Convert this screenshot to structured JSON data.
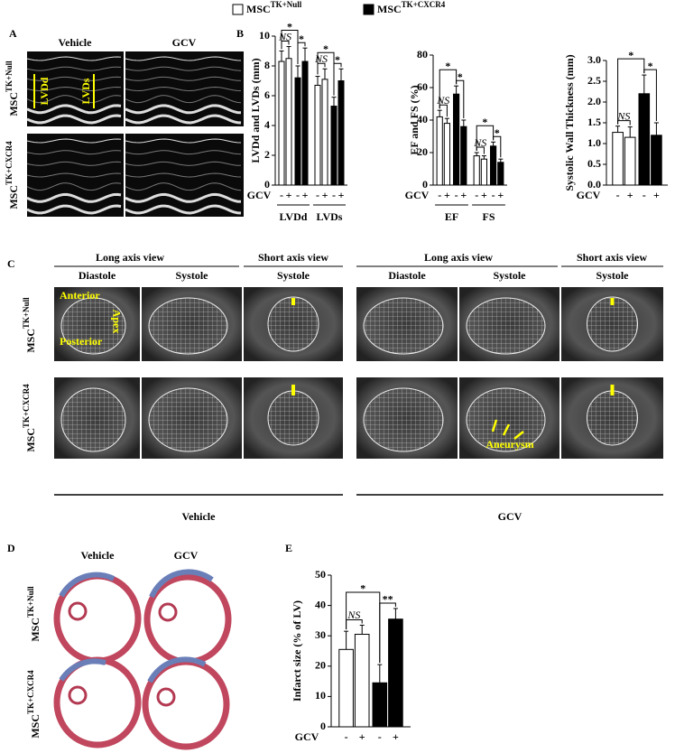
{
  "legend": [
    {
      "main": "MSC",
      "sup": "TK+Null",
      "color": "#ffffff"
    },
    {
      "main": "MSC",
      "sup": "TK+CXCR4",
      "color": "#000000"
    }
  ],
  "panel_labels": [
    "A",
    "B",
    "C",
    "D",
    "E"
  ],
  "panel_a": {
    "columns": [
      "Vehicle",
      "GCV"
    ],
    "rows": [
      {
        "main": "MSC",
        "sup": "TK+Null"
      },
      {
        "main": "MSC",
        "sup": "TK+CXCR4"
      }
    ],
    "markers": [
      "LVDd",
      "LVDs"
    ]
  },
  "panel_c": {
    "view_headers": [
      "Long axis view",
      "Short axis view",
      "Long axis view",
      "Short axis  view"
    ],
    "phases": [
      "Diastole",
      "Systole",
      "Systole",
      "Diastole",
      "Systole",
      "Systole"
    ],
    "rows": [
      {
        "main": "MSC",
        "sup": "TK+Null"
      },
      {
        "main": "MSC",
        "sup": "TK+CXCR4"
      }
    ],
    "annotations": [
      "Anterior",
      "Apex",
      "Posterior",
      "Aneurysm"
    ],
    "groups": [
      "Vehicle",
      "GCV"
    ]
  },
  "panel_d": {
    "columns": [
      "Vehicle",
      "GCV"
    ],
    "rows": [
      {
        "main": "MSC",
        "sup": "TK+Null"
      },
      {
        "main": "MSC",
        "sup": "TK+CXCR4"
      }
    ]
  },
  "chart_data": [
    {
      "type": "bar",
      "y_label": "LVDd and LVDs (mm)",
      "ylim": [
        0,
        10
      ],
      "yticks": [
        0,
        2,
        4,
        6,
        8,
        10
      ],
      "x_prefix": "GCV",
      "treatment": [
        "-",
        "+",
        "-",
        "+"
      ],
      "colors": [
        "#ffffff",
        "#ffffff",
        "#000000",
        "#000000"
      ],
      "groups": [
        {
          "name": "LVDd",
          "values": [
            8.3,
            8.5,
            7.2,
            8.3
          ],
          "errors": [
            0.7,
            0.8,
            0.8,
            0.9
          ],
          "annotations": [
            "*",
            "*",
            "NS"
          ]
        },
        {
          "name": "LVDs",
          "values": [
            6.7,
            7.1,
            5.3,
            7.0
          ],
          "errors": [
            0.6,
            0.7,
            0.6,
            0.8
          ],
          "annotations": [
            "*",
            "*",
            "NS"
          ]
        }
      ]
    },
    {
      "type": "bar",
      "y_label": "EF and FS (%)",
      "ylim": [
        0,
        80
      ],
      "yticks": [
        0,
        20,
        40,
        60,
        80
      ],
      "x_prefix": "GCV",
      "treatment": [
        "-",
        "+",
        "-",
        "+"
      ],
      "colors": [
        "#ffffff",
        "#ffffff",
        "#000000",
        "#000000"
      ],
      "groups": [
        {
          "name": "EF",
          "values": [
            42,
            38,
            56,
            36
          ],
          "errors": [
            4,
            3,
            5,
            4
          ],
          "annotations": [
            "*",
            "*",
            "NS"
          ]
        },
        {
          "name": "FS",
          "values": [
            18,
            16,
            24,
            14
          ],
          "errors": [
            2,
            2,
            2.5,
            2
          ],
          "annotations": [
            "*",
            "*",
            "NS"
          ]
        }
      ]
    },
    {
      "type": "bar",
      "y_label": "Systolic Wall Thickness (mm)",
      "ylim": [
        0,
        3
      ],
      "yticks": [
        {
          "value": 0,
          "label": "0.0"
        },
        0.5,
        {
          "value": 1,
          "label": "1.0"
        },
        1.5,
        {
          "value": 2,
          "label": "2.0"
        },
        2.5,
        {
          "value": 3,
          "label": "3.0"
        }
      ],
      "x_prefix": "GCV",
      "treatment": [
        "-",
        "+",
        "-",
        "+"
      ],
      "colors": [
        "#ffffff",
        "#ffffff",
        "#000000",
        "#000000"
      ],
      "groups": [
        {
          "values": [
            1.27,
            1.15,
            2.2,
            1.2
          ],
          "errors": [
            0.15,
            0.25,
            0.45,
            0.3
          ],
          "annotations": [
            "*",
            "*",
            "NS"
          ]
        }
      ]
    },
    {
      "type": "bar",
      "y_label": "Infarct size (% of LV)",
      "ylim": [
        0,
        50
      ],
      "yticks": [
        0,
        10,
        20,
        30,
        40,
        50
      ],
      "x_prefix": "GCV",
      "treatment": [
        "-",
        "+",
        "-",
        "+"
      ],
      "colors": [
        "#ffffff",
        "#ffffff",
        "#000000",
        "#000000"
      ],
      "groups": [
        {
          "values": [
            25.5,
            30.5,
            14.5,
            35.5
          ],
          "errors": [
            6,
            3,
            6,
            3.5
          ],
          "annotations": [
            "*",
            "**",
            "NS"
          ]
        }
      ]
    }
  ]
}
